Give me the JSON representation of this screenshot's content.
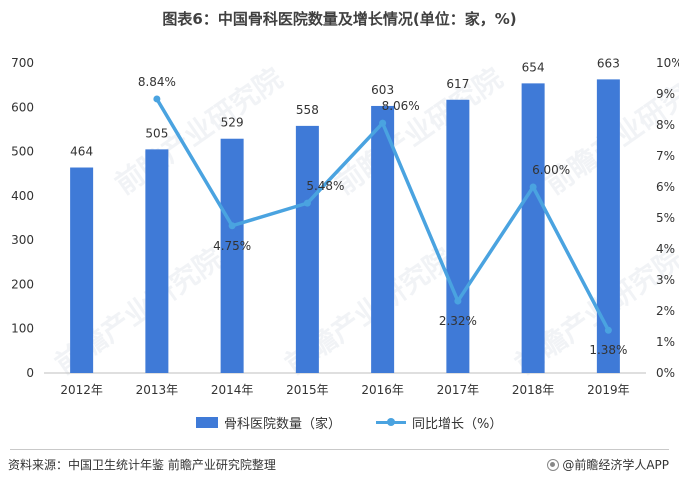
{
  "title": "图表6：中国骨科医院数量及增长情况(单位：家，%)",
  "chart_data": {
    "type": "bar",
    "categories": [
      "2012年",
      "2013年",
      "2014年",
      "2015年",
      "2016年",
      "2017年",
      "2018年",
      "2019年"
    ],
    "series": [
      {
        "name": "骨科医院数量（家）",
        "type": "bar",
        "axis": "left",
        "values": [
          464,
          505,
          529,
          558,
          603,
          617,
          654,
          663
        ],
        "labels": [
          "464",
          "505",
          "529",
          "558",
          "603",
          "617",
          "654",
          "663"
        ]
      },
      {
        "name": "同比增长（%）",
        "type": "line",
        "axis": "right",
        "values": [
          null,
          8.84,
          4.75,
          5.48,
          8.06,
          2.32,
          6.0,
          1.38
        ],
        "labels": [
          "",
          "8.84%",
          "4.75%",
          "5.48%",
          "8.06%",
          "2.32%",
          "6.00%",
          "1.38%"
        ]
      }
    ],
    "left_axis": {
      "ylim": [
        0,
        700
      ],
      "ticks": [
        "0",
        "100",
        "200",
        "300",
        "400",
        "500",
        "600",
        "700"
      ]
    },
    "right_axis": {
      "ylim": [
        0,
        10
      ],
      "ticks": [
        "0%",
        "1%",
        "2%",
        "3%",
        "4%",
        "5%",
        "6%",
        "7%",
        "8%",
        "9%",
        "10%"
      ]
    },
    "legend_position": "bottom",
    "grid": false,
    "colors": {
      "bar": "#3f7ad7",
      "line": "#4aa3e0"
    }
  },
  "footer": {
    "source": "资料来源：中国卫生统计年鉴 前瞻产业研究院整理",
    "brand": "@前瞻经济学人APP"
  },
  "watermark": "前瞻产业研究院"
}
